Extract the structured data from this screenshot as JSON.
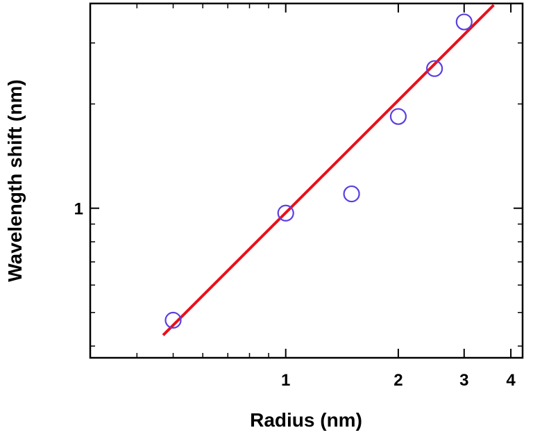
{
  "chart_data": {
    "type": "scatter",
    "title": "",
    "xlabel": "Radius (nm)",
    "ylabel": "Wavelength shift (nm)",
    "x_scale": "log",
    "y_scale": "log",
    "xlim": [
      0.3,
      4.3
    ],
    "ylim": [
      0.37,
      3.9
    ],
    "x_ticks": [
      {
        "value": 1,
        "label": "1"
      },
      {
        "value": 2,
        "label": "2"
      },
      {
        "value": 3,
        "label": "3"
      },
      {
        "value": 4,
        "label": "4"
      }
    ],
    "y_ticks": [
      {
        "value": 1,
        "label": "1"
      }
    ],
    "grid": false,
    "series": [
      {
        "kind": "scatter",
        "marker": "open-circle",
        "color": "#5b3fe0",
        "x": [
          0.5,
          1.0,
          1.5,
          2.0,
          2.5,
          3.0
        ],
        "y": [
          0.475,
          0.968,
          1.1,
          1.84,
          2.53,
          3.45
        ]
      },
      {
        "kind": "fit-line",
        "color": "#e8101a",
        "x": [
          0.47,
          3.6
        ],
        "y": [
          0.43,
          3.86
        ]
      }
    ]
  }
}
